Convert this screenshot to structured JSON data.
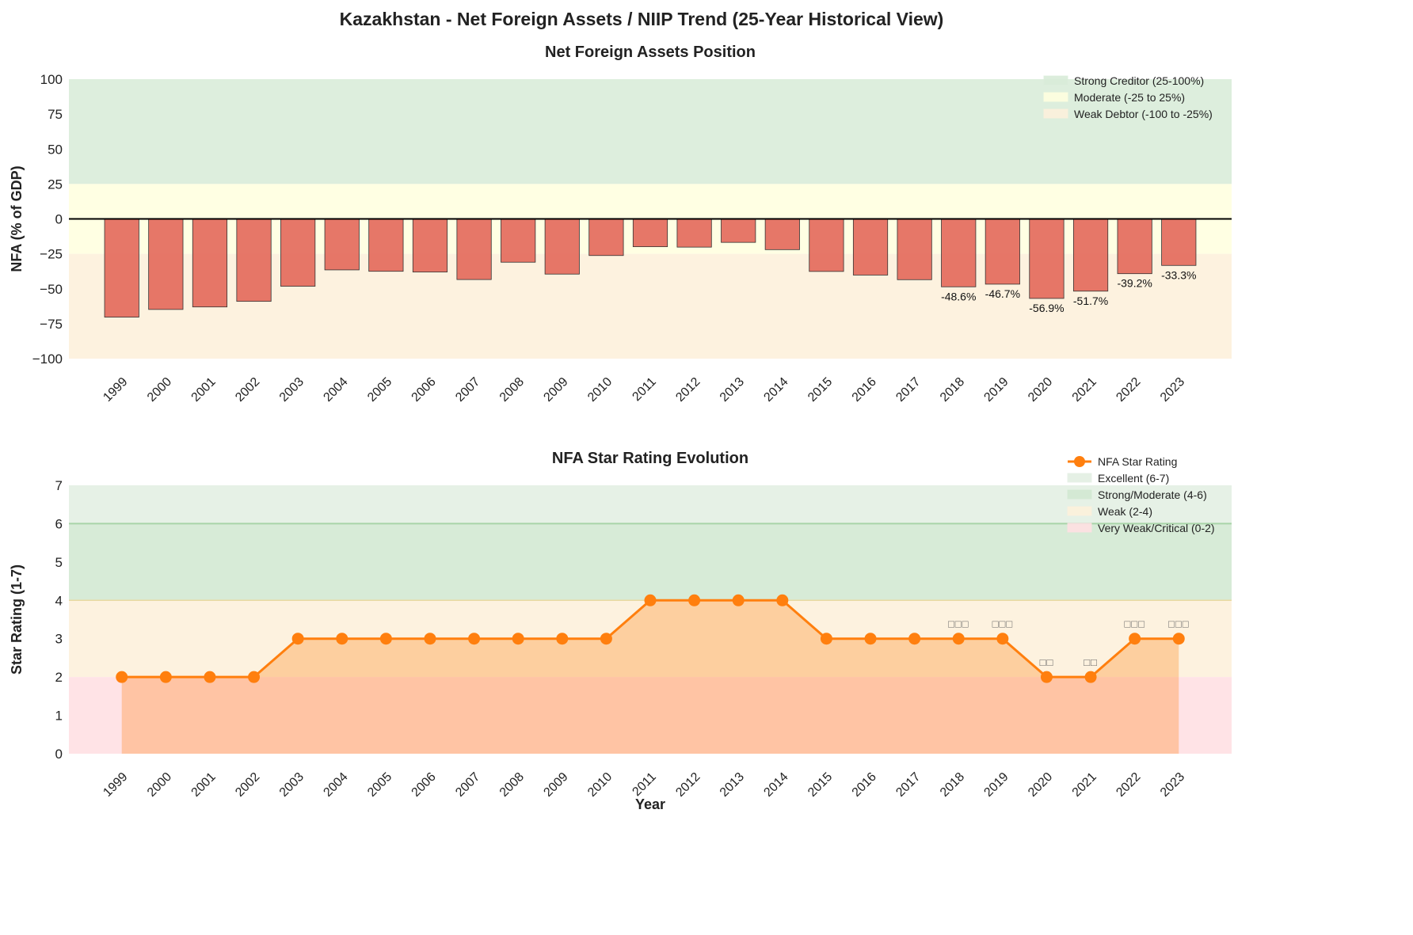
{
  "title": "Kazakhstan - Net Foreign Assets / NIIP Trend (25-Year Historical View)",
  "chart_data": [
    {
      "type": "bar",
      "title": "Net Foreign Assets Position",
      "xlabel": "",
      "ylabel": "NFA (% of GDP)",
      "ylim": [
        -100,
        100
      ],
      "yticks": [
        -100,
        -75,
        -50,
        -25,
        0,
        25,
        50,
        75,
        100
      ],
      "ytick_labels": [
        "−100",
        "−75",
        "−50",
        "−25",
        "0",
        "25",
        "50",
        "75",
        "100"
      ],
      "categories": [
        "1999",
        "2000",
        "2001",
        "2002",
        "2003",
        "2004",
        "2005",
        "2006",
        "2007",
        "2008",
        "2009",
        "2010",
        "2011",
        "2012",
        "2013",
        "2014",
        "2015",
        "2016",
        "2017",
        "2018",
        "2019",
        "2020",
        "2021",
        "2022",
        "2023"
      ],
      "values": [
        -70.3,
        -64.8,
        -63.0,
        -59.0,
        -48.2,
        -36.5,
        -37.5,
        -38.0,
        -43.4,
        -31.0,
        -39.5,
        -26.2,
        -19.9,
        -20.2,
        -16.8,
        -22.0,
        -37.6,
        -40.2,
        -43.5,
        -48.6,
        -46.7,
        -56.9,
        -51.7,
        -39.2,
        -33.3
      ],
      "data_labels": {
        "2018": "-48.6%",
        "2019": "-46.7%",
        "2020": "-56.9%",
        "2021": "-51.7%",
        "2022": "-39.2%",
        "2023": "-33.3%"
      },
      "bar_color": "#e3685a",
      "bands": [
        {
          "name": "Strong Creditor (25-100%)",
          "range": [
            25,
            100
          ],
          "color": "#d9ecd9"
        },
        {
          "name": "Moderate (-25 to 25%)",
          "range": [
            -25,
            25
          ],
          "color": "#ffffe0"
        },
        {
          "name": "Weak Debtor (-100 to -25%)",
          "range": [
            -100,
            -25
          ],
          "color": "#fdf1dc"
        }
      ],
      "legend_position": "top-right",
      "grid": false
    },
    {
      "type": "line",
      "title": "NFA Star Rating Evolution",
      "xlabel": "Year",
      "ylabel": "Star Rating (1-7)",
      "ylim": [
        0,
        7
      ],
      "yticks": [
        0,
        1,
        2,
        3,
        4,
        5,
        6,
        7
      ],
      "categories": [
        "1999",
        "2000",
        "2001",
        "2002",
        "2003",
        "2004",
        "2005",
        "2006",
        "2007",
        "2008",
        "2009",
        "2010",
        "2011",
        "2012",
        "2013",
        "2014",
        "2015",
        "2016",
        "2017",
        "2018",
        "2019",
        "2020",
        "2021",
        "2022",
        "2023"
      ],
      "series": [
        {
          "name": "NFA Star Rating",
          "values": [
            2,
            2,
            2,
            2,
            3,
            3,
            3,
            3,
            3,
            3,
            3,
            3,
            4,
            4,
            4,
            4,
            3,
            3,
            3,
            3,
            3,
            2,
            2,
            3,
            3
          ],
          "color": "#ff7f0e"
        }
      ],
      "annotations": {
        "2018": "□□□",
        "2019": "□□□",
        "2020": "□□",
        "2021": "□□",
        "2022": "□□□",
        "2023": "□□□"
      },
      "bands": [
        {
          "name": "Excellent (6-7)",
          "range": [
            6,
            7
          ],
          "color": "#e3efe3"
        },
        {
          "name": "Strong/Moderate (4-6)",
          "range": [
            4,
            6
          ],
          "color": "#d3e9d3"
        },
        {
          "name": "Weak (2-4)",
          "range": [
            2,
            4
          ],
          "color": "#fdf1dc"
        },
        {
          "name": "Very Weak/Critical (0-2)",
          "range": [
            0,
            2
          ],
          "color": "#ffe0e3"
        }
      ],
      "legend_position": "top-right",
      "grid": false
    }
  ]
}
